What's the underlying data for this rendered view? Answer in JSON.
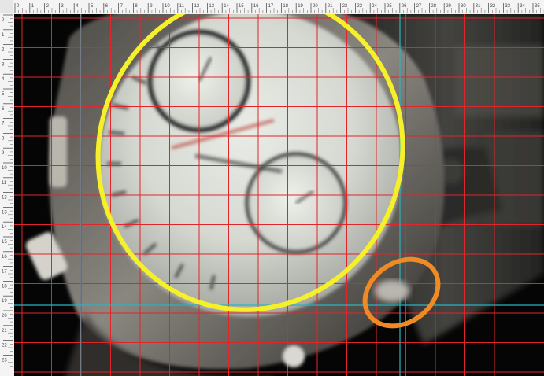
{
  "document": {
    "subject": "chronograph-watch-photo"
  },
  "rulers": {
    "horizontal_ticks": [
      "0",
      "1",
      "2",
      "3",
      "4",
      "5",
      "6",
      "7",
      "8",
      "9",
      "10",
      "11",
      "12",
      "13",
      "14",
      "15",
      "16",
      "17",
      "18",
      "19",
      "20",
      "21",
      "22",
      "23",
      "24",
      "25",
      "26",
      "27",
      "28",
      "29",
      "30",
      "31",
      "32",
      "33",
      "34",
      "35"
    ],
    "vertical_ticks": [
      "0",
      "1",
      "2",
      "3",
      "4",
      "5",
      "6",
      "7",
      "8",
      "9",
      "10",
      "11",
      "12",
      "13",
      "14",
      "15",
      "16",
      "17",
      "18",
      "19",
      "20",
      "21",
      "22",
      "23"
    ]
  },
  "overlay": {
    "grid_color": "#e0262a",
    "guide_color": "#2bb3c0",
    "dial_marker_color": "#f5f02a",
    "crown_marker_color": "#f08a24"
  },
  "icons": {
    "ruler_corner": "ruler-origin-icon"
  }
}
